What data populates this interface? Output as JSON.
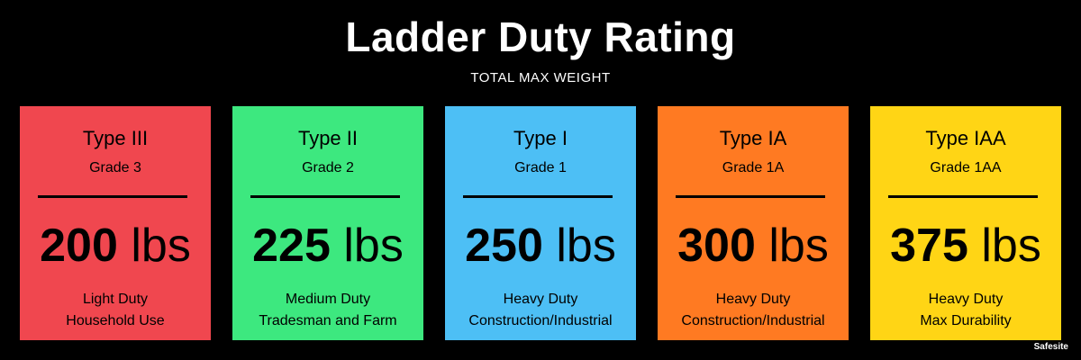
{
  "title": "Ladder Duty Rating",
  "subtitle": "TOTAL MAX WEIGHT",
  "brand": "Safesite",
  "colors": {
    "background": "#000000",
    "text": "#ffffff"
  },
  "cards": [
    {
      "type": "Type III",
      "grade": "Grade 3",
      "weight_num": "200",
      "weight_unit": "lbs",
      "duty": "Light Duty",
      "use": "Household Use",
      "color": "#f0474f"
    },
    {
      "type": "Type II",
      "grade": "Grade 2",
      "weight_num": "225",
      "weight_unit": "lbs",
      "duty": "Medium Duty",
      "use": "Tradesman and Farm",
      "color": "#3de87f"
    },
    {
      "type": "Type I",
      "grade": "Grade 1",
      "weight_num": "250",
      "weight_unit": "lbs",
      "duty": "Heavy Duty",
      "use": "Construction/Industrial",
      "color": "#4dbff5"
    },
    {
      "type": "Type IA",
      "grade": "Grade 1A",
      "weight_num": "300",
      "weight_unit": "lbs",
      "duty": "Heavy Duty",
      "use": "Construction/Industrial",
      "color": "#ff7a22"
    },
    {
      "type": "Type IAA",
      "grade": "Grade 1AA",
      "weight_num": "375",
      "weight_unit": "lbs",
      "duty": "Heavy Duty",
      "use": "Max Durability",
      "color": "#ffd515"
    }
  ]
}
